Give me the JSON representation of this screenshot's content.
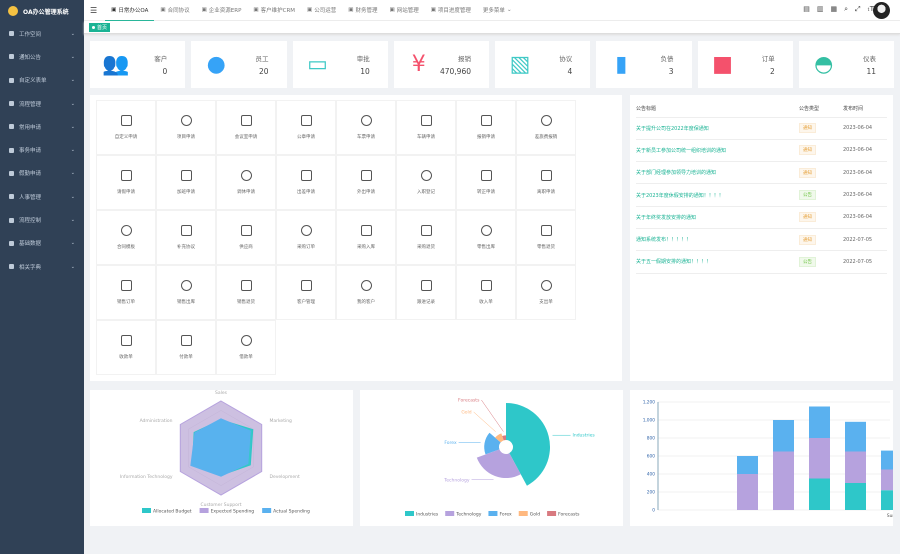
{
  "app": {
    "title": "OA办公管理系统"
  },
  "sidebar": {
    "items": [
      {
        "label": "工作空间"
      },
      {
        "label": "通知公告"
      },
      {
        "label": "自定义表单"
      },
      {
        "label": "流程管理"
      },
      {
        "label": "常用申请"
      },
      {
        "label": "事务申请"
      },
      {
        "label": "假勤申请"
      },
      {
        "label": "人事管理"
      },
      {
        "label": "流程控制"
      },
      {
        "label": "基础数据"
      },
      {
        "label": "相关字典"
      }
    ]
  },
  "topnav": {
    "items": [
      {
        "label": "日常办公OA"
      },
      {
        "label": "合同协议"
      },
      {
        "label": "企业资源ERP"
      },
      {
        "label": "客户维护CRM"
      },
      {
        "label": "公司运营"
      },
      {
        "label": "财务管理"
      },
      {
        "label": "网站管理"
      },
      {
        "label": "项目进度管理"
      },
      {
        "label": "更多菜单"
      }
    ]
  },
  "tags": {
    "home": "首页"
  },
  "stats": [
    {
      "label": "客户",
      "value": "0",
      "icon": "customers-icon",
      "color": "#40c9c6"
    },
    {
      "label": "员工",
      "value": "20",
      "icon": "user-icon",
      "color": "#36a3f7"
    },
    {
      "label": "审批",
      "value": "10",
      "icon": "approval-icon",
      "color": "#40c9c6"
    },
    {
      "label": "报销",
      "value": "470,960",
      "icon": "yen-icon",
      "color": "#f4516c"
    },
    {
      "label": "协议",
      "value": "4",
      "icon": "agreement-icon",
      "color": "#40c9c6"
    },
    {
      "label": "负债",
      "value": "3",
      "icon": "thermometer-icon",
      "color": "#36a3f7"
    },
    {
      "label": "订单",
      "value": "2",
      "icon": "calendar-icon",
      "color": "#f4516c"
    },
    {
      "label": "仪表",
      "value": "11",
      "icon": "dashboard-icon",
      "color": "#34bfa3"
    }
  ],
  "apps": [
    "自定义申请",
    "项目申请",
    "会议室申请",
    "公章申请",
    "车票申请",
    "车辆申请",
    "报销申请",
    "差旅费报销",
    "请假申请",
    "加班申请",
    "调休申请",
    "出差申请",
    "外出申请",
    "入职登记",
    "转正申请",
    "离职申请",
    "合同模板",
    "补充协议",
    "供应商",
    "采购订单",
    "采购入库",
    "采购退货",
    "零售出库",
    "零售退货",
    "销售订单",
    "销售出库",
    "销售退货",
    "客户管理",
    "我的客户",
    "跟进记录",
    "收入单",
    "支出单",
    "收款单",
    "付款单",
    "借款单"
  ],
  "notice": {
    "headers": [
      "公告标题",
      "公告类型",
      "发布时间"
    ],
    "rows": [
      {
        "title": "关于提升公司在2022年度保通知",
        "type": "通知",
        "date": "2023-06-04"
      },
      {
        "title": "关于新员工参加公司统一组织培训的通知",
        "type": "通知",
        "date": "2023-06-04"
      },
      {
        "title": "关于部门经理参加领导力培训的通知",
        "type": "通知",
        "date": "2023-06-04"
      },
      {
        "title": "关于2023年度休假安排的通知！！！！",
        "type": "公告",
        "date": "2023-06-04"
      },
      {
        "title": "关于年终奖发放安排的通知",
        "type": "通知",
        "date": "2023-06-04"
      },
      {
        "title": "通知系统发布！！！！！",
        "type": "通知",
        "date": "2022-07-05"
      },
      {
        "title": "关于五一假期安排的通知！！！！",
        "type": "公告",
        "date": "2022-07-05"
      }
    ]
  },
  "chart_data": [
    {
      "type": "radar",
      "indicators": [
        "Sales",
        "Marketing",
        "Development",
        "Customer Support",
        "Information Technology",
        "Administration"
      ],
      "max": 100,
      "series": [
        {
          "name": "Allocated Budget",
          "color": "#2ec7c9",
          "values": [
            60,
            78,
            72,
            58,
            70,
            66
          ]
        },
        {
          "name": "Expected Spending",
          "color": "#b6a2de",
          "values": [
            100,
            100,
            100,
            100,
            100,
            100
          ]
        },
        {
          "name": "Actual Spending",
          "color": "#5ab1ef",
          "values": [
            62,
            72,
            66,
            60,
            74,
            64
          ]
        }
      ]
    },
    {
      "type": "pie",
      "rose": true,
      "categories": [
        "Industries",
        "Technology",
        "Forex",
        "Gold",
        "Forecasts"
      ],
      "values": [
        40,
        26,
        16,
        8,
        5
      ],
      "colors": [
        "#2ec7c9",
        "#b6a2de",
        "#5ab1ef",
        "#ffb980",
        "#d87a80"
      ]
    },
    {
      "type": "bar",
      "stacked": true,
      "ylim": [
        0,
        1200
      ],
      "yticks": [
        "1,200",
        "1,000",
        "800",
        "600",
        "400",
        "200",
        "0"
      ],
      "categories": [
        "",
        "",
        "",
        "",
        "Sun"
      ],
      "series": [
        {
          "color": "#2ec7c9",
          "values": [
            0,
            0,
            350,
            300,
            220
          ]
        },
        {
          "color": "#b6a2de",
          "values": [
            400,
            650,
            450,
            350,
            230
          ]
        },
        {
          "color": "#5ab1ef",
          "values": [
            200,
            350,
            350,
            330,
            210
          ]
        }
      ]
    }
  ]
}
